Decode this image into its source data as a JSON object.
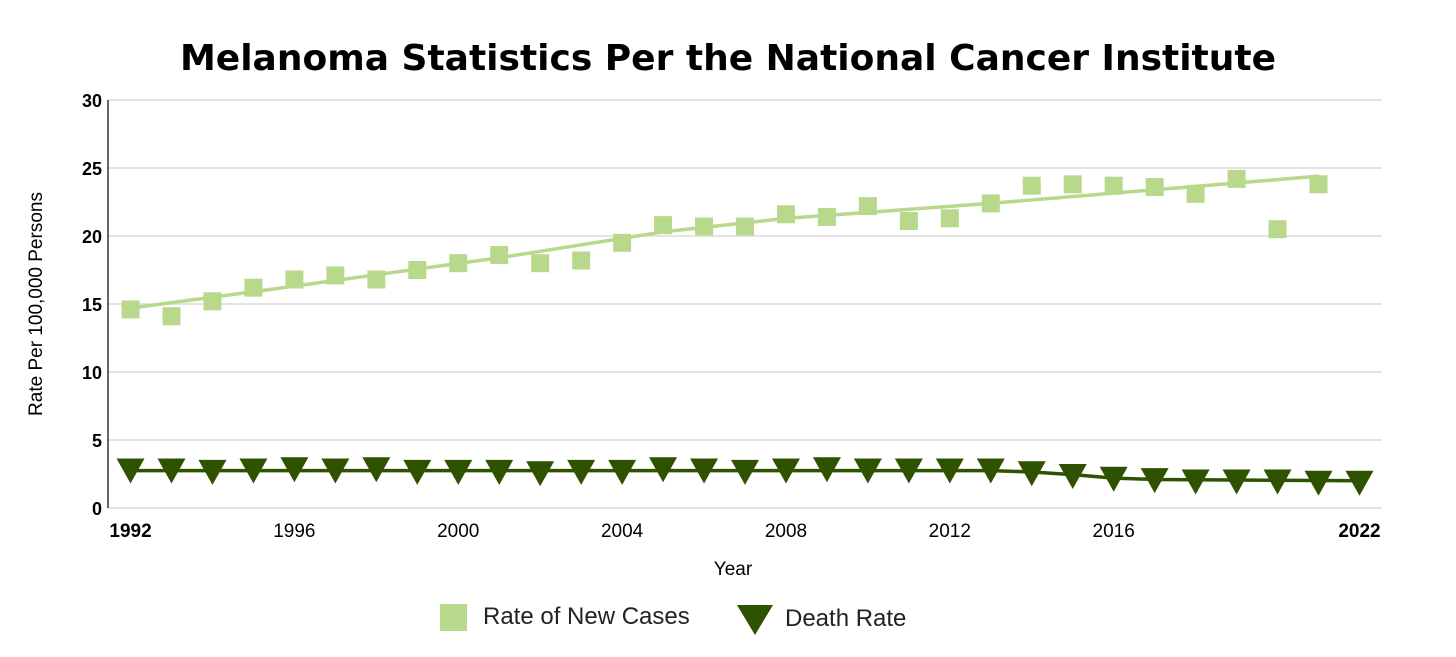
{
  "chart_data": {
    "type": "scatter",
    "title": "Melanoma Statistics Per the National Cancer Institute",
    "xlabel": "Year",
    "ylabel": "Rate Per 100,000 Persons",
    "xlim": [
      1991.45,
      2022.55
    ],
    "ylim": [
      0,
      30
    ],
    "x_ticks": [
      1992,
      1996,
      2000,
      2004,
      2008,
      2012,
      2016,
      2022
    ],
    "y_ticks": [
      0,
      5,
      10,
      15,
      20,
      25,
      30
    ],
    "grid": true,
    "legend_position": "bottom",
    "series": [
      {
        "name": "Rate of New Cases",
        "marker": "square",
        "color": "#b8d98c",
        "x": [
          1992,
          1993,
          1994,
          1995,
          1996,
          1997,
          1998,
          1999,
          2000,
          2001,
          2002,
          2003,
          2004,
          2005,
          2006,
          2007,
          2008,
          2009,
          2010,
          2011,
          2012,
          2013,
          2014,
          2015,
          2016,
          2017,
          2018,
          2019,
          2020,
          2021
        ],
        "values": [
          14.6,
          14.1,
          15.2,
          16.2,
          16.8,
          17.1,
          16.8,
          17.5,
          18.0,
          18.6,
          18.0,
          18.2,
          19.5,
          20.8,
          20.7,
          20.7,
          21.6,
          21.4,
          22.2,
          21.1,
          21.3,
          22.4,
          23.7,
          23.8,
          23.7,
          23.6,
          23.1,
          24.2,
          20.5,
          23.8
        ],
        "trend": [
          [
            1992,
            14.7
          ],
          [
            1995,
            15.9
          ],
          [
            2001,
            18.4
          ],
          [
            2005,
            20.3
          ],
          [
            2008,
            21.3
          ],
          [
            2013,
            22.4
          ],
          [
            2019,
            23.9
          ],
          [
            2021,
            24.4
          ]
        ]
      },
      {
        "name": "Death Rate",
        "marker": "triangle-down",
        "color": "#2f5200",
        "x": [
          1992,
          1993,
          1994,
          1995,
          1996,
          1997,
          1998,
          1999,
          2000,
          2001,
          2002,
          2003,
          2004,
          2005,
          2006,
          2007,
          2008,
          2009,
          2010,
          2011,
          2012,
          2013,
          2014,
          2015,
          2016,
          2017,
          2018,
          2019,
          2020,
          2021,
          2022
        ],
        "values": [
          2.9,
          2.9,
          2.8,
          2.9,
          3.0,
          2.9,
          3.0,
          2.8,
          2.8,
          2.8,
          2.7,
          2.8,
          2.8,
          3.0,
          2.9,
          2.8,
          2.9,
          3.0,
          2.9,
          2.9,
          2.9,
          2.9,
          2.7,
          2.5,
          2.3,
          2.2,
          2.1,
          2.1,
          2.1,
          2.0,
          2.0
        ],
        "trend": [
          [
            1992,
            2.75
          ],
          [
            2013,
            2.75
          ],
          [
            2014,
            2.65
          ],
          [
            2015,
            2.45
          ],
          [
            2016,
            2.2
          ],
          [
            2017,
            2.1
          ],
          [
            2022,
            2.0
          ]
        ]
      }
    ]
  }
}
